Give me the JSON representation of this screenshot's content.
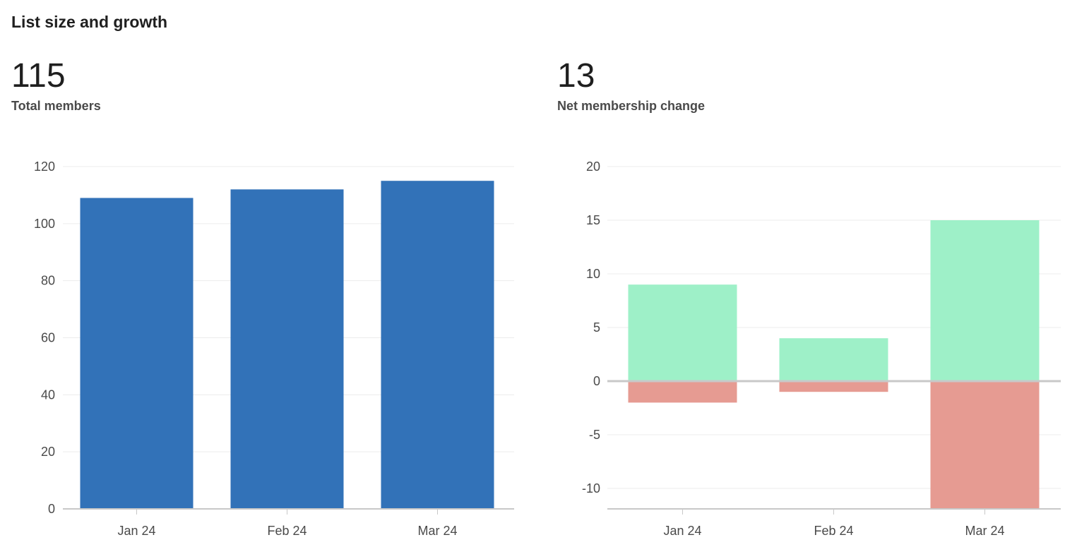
{
  "title": "List size and growth",
  "stats": {
    "total": {
      "value": "115",
      "label": "Total members"
    },
    "net": {
      "value": "13",
      "label": "Net membership change"
    }
  },
  "colors": {
    "bar": "#3272b8",
    "gain": "#9ef0c8",
    "loss": "#e69b92",
    "grid": "#ececec",
    "axis": "#c8c8c8",
    "zero": "#c8c8c8"
  },
  "chart_data": [
    {
      "type": "bar",
      "categories": [
        "Jan 24",
        "Feb 24",
        "Mar 24"
      ],
      "values": [
        109,
        112,
        115
      ],
      "ylim": [
        0,
        120
      ],
      "yticks": [
        0,
        20,
        40,
        60,
        80,
        100,
        120
      ],
      "grid": true
    },
    {
      "type": "bar",
      "stacked": true,
      "categories": [
        "Jan 24",
        "Feb 24",
        "Mar 24"
      ],
      "series": [
        {
          "values": [
            9,
            4,
            15
          ]
        },
        {
          "values": [
            -2,
            -1,
            -12
          ]
        }
      ],
      "ylim": [
        -12,
        20
      ],
      "yticks": [
        -10,
        -5,
        0,
        5,
        10,
        15,
        20
      ],
      "grid": true
    }
  ]
}
